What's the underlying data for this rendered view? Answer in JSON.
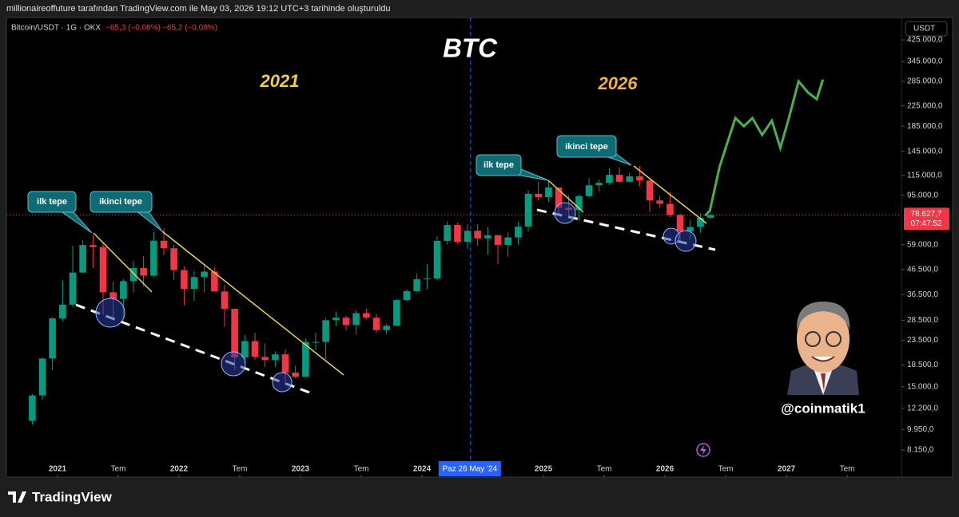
{
  "header": {
    "caption": "millionaireoffuture tarafından TradingView.com ile May 03, 2026 19:12 UTC+3 tarihinde oluşturuldu"
  },
  "chart_data": {
    "type": "candlestick",
    "symbol": "Bitcoin/USDT · 1G · OKX",
    "change_1": "−65,3 (−0,08%)",
    "change_2": "−65,2 (−0,08%)",
    "currency": "USDT",
    "title": "BTC",
    "label_left": "2021",
    "label_right": "2026",
    "callout_1": "ilk tepe",
    "callout_2": "ikinci tepe",
    "callout_3": "ilk tepe",
    "callout_4": "ikinci tepe",
    "author": "@coinmatik1",
    "up_color": "#089981",
    "down_color": "#f23645",
    "x": [
      2020.792,
      2020.875,
      2020.958,
      2021.042,
      2021.125,
      2021.208,
      2021.292,
      2021.375,
      2021.458,
      2021.542,
      2021.625,
      2021.708,
      2021.792,
      2021.875,
      2021.958,
      2022.042,
      2022.125,
      2022.208,
      2022.292,
      2022.375,
      2022.458,
      2022.542,
      2022.625,
      2022.708,
      2022.792,
      2022.875,
      2022.958,
      2023.042,
      2023.125,
      2023.208,
      2023.292,
      2023.375,
      2023.458,
      2023.542,
      2023.625,
      2023.708,
      2023.792,
      2023.875,
      2023.958,
      2024.042,
      2024.125,
      2024.208,
      2024.292,
      2024.375,
      2024.458,
      2024.542,
      2024.625,
      2024.708,
      2024.792,
      2024.875,
      2024.958,
      2025.042,
      2025.125,
      2025.208,
      2025.292,
      2025.375,
      2025.458,
      2025.542,
      2025.625,
      2025.708,
      2025.792,
      2025.875,
      2025.958,
      2026.042,
      2026.125,
      2026.208,
      2026.292,
      2026.375
    ],
    "open": [
      10800,
      13800,
      19700,
      29000,
      33100,
      45100,
      58800,
      57700,
      37300,
      35000,
      41500,
      47100,
      43800,
      61300,
      57000,
      46200,
      38500,
      43200,
      45500,
      37600,
      31800,
      19900,
      23300,
      20000,
      19400,
      20500,
      17200,
      16500,
      23100,
      23100,
      28500,
      29200,
      27200,
      30500,
      29200,
      25900,
      27000,
      34600,
      37700,
      42300,
      42600,
      61200,
      71300,
      60600,
      67500,
      62700,
      64600,
      58900,
      63300,
      70200,
      96400,
      93400,
      102400,
      84300,
      82500,
      94200,
      104600,
      107100,
      115700,
      108200,
      114000,
      109500,
      90400,
      87500,
      78600,
      67000,
      70000,
      76500
    ],
    "high": [
      14000,
      19900,
      29300,
      41900,
      58400,
      61800,
      64900,
      59600,
      41300,
      42300,
      50500,
      52900,
      67000,
      69000,
      59100,
      47900,
      45800,
      48200,
      47500,
      40000,
      31900,
      24700,
      25200,
      22800,
      21100,
      21500,
      18400,
      23900,
      25300,
      29200,
      31000,
      29800,
      31400,
      31800,
      30200,
      27500,
      35000,
      38400,
      44700,
      48900,
      64000,
      73800,
      72800,
      71900,
      72000,
      70000,
      65000,
      66500,
      73600,
      99600,
      108300,
      109600,
      102500,
      95000,
      95700,
      111900,
      110500,
      123200,
      124500,
      117900,
      126200,
      110600,
      94600,
      97900,
      79500,
      75000,
      80000,
      79500
    ],
    "low": [
      10400,
      13200,
      17600,
      28100,
      32300,
      45000,
      47000,
      30000,
      28800,
      29300,
      37300,
      39600,
      43300,
      53300,
      42000,
      32900,
      34300,
      37200,
      37600,
      26700,
      17600,
      18800,
      19500,
      18100,
      18200,
      15500,
      16300,
      16500,
      21400,
      19600,
      26900,
      25800,
      24800,
      28900,
      25200,
      24900,
      26900,
      34100,
      37600,
      38500,
      41900,
      59000,
      59600,
      56500,
      58400,
      53500,
      49000,
      52500,
      58900,
      66800,
      90500,
      89200,
      78200,
      76600,
      74400,
      93300,
      98200,
      105100,
      107300,
      107200,
      103500,
      80600,
      84000,
      77000,
      60000,
      62000,
      66000,
      76000
    ],
    "close": [
      13800,
      19700,
      29000,
      33100,
      45100,
      58800,
      57700,
      37300,
      35000,
      41500,
      47100,
      43800,
      61300,
      57000,
      46200,
      38500,
      43200,
      45500,
      37600,
      31800,
      19900,
      23300,
      20000,
      19400,
      20500,
      17200,
      16500,
      23100,
      23100,
      28500,
      29200,
      27200,
      30500,
      29200,
      25900,
      27000,
      34600,
      37700,
      42300,
      42600,
      61200,
      71300,
      60600,
      67500,
      62700,
      64600,
      58900,
      63300,
      70200,
      96400,
      93400,
      102400,
      84300,
      82500,
      94200,
      104600,
      107100,
      115700,
      108200,
      114000,
      109500,
      90400,
      87500,
      78600,
      67000,
      70000,
      76500,
      78627.7
    ],
    "projection": {
      "color": "#4caf50",
      "x": [
        2026.33,
        2026.37,
        2026.45,
        2026.5,
        2026.58,
        2026.65,
        2026.72,
        2026.8,
        2026.88,
        2026.95,
        2027.02,
        2027.1,
        2027.18,
        2027.25,
        2027.3
      ],
      "values": [
        78000,
        82000,
        125000,
        150000,
        200000,
        185000,
        200000,
        170000,
        195000,
        150000,
        200000,
        285000,
        255000,
        240000,
        290000
      ]
    },
    "xlim": [
      2020.579,
      2027.947
    ],
    "xticks": [
      2021,
      {
        "value": 2021.5,
        "label": "Tem"
      },
      2022,
      {
        "value": 2022.5,
        "label": "Tem"
      },
      2023,
      {
        "value": 2023.5,
        "label": "Tem"
      },
      2024,
      2025,
      {
        "value": 2025.5,
        "label": "Tem"
      },
      2026,
      {
        "value": 2026.5,
        "label": "Tem"
      },
      2027,
      {
        "value": 2027.5,
        "label": "Tem"
      }
    ],
    "ylim": [
      6280,
      527000
    ],
    "log_scale": true,
    "grid": false,
    "yticks": [
      {
        "value": 425000,
        "label": "425.000,0"
      },
      {
        "value": 345000,
        "label": "345.000,0"
      },
      {
        "value": 285000,
        "label": "285.000,0"
      },
      {
        "value": 225000,
        "label": "225.000,0"
      },
      {
        "value": 185000,
        "label": "185.000,0"
      },
      {
        "value": 145000,
        "label": "145.000,0"
      },
      {
        "value": 115000,
        "label": "115.000,0"
      },
      {
        "value": 95000,
        "label": "95.000,0"
      },
      {
        "value": 59000,
        "label": "59.000,0"
      },
      {
        "value": 46500,
        "label": "46.500,0"
      },
      {
        "value": 36500,
        "label": "36.500,0"
      },
      {
        "value": 28500,
        "label": "28.500,0"
      },
      {
        "value": 23500,
        "label": "23.500,0"
      },
      {
        "value": 18500,
        "label": "18.500,0"
      },
      {
        "value": 15000,
        "label": "15.000,0"
      },
      {
        "value": 12200,
        "label": "12.200,0"
      },
      {
        "value": 9950,
        "label": "9.950,0"
      },
      {
        "value": 8150,
        "label": "8.150,0"
      }
    ],
    "last_price": {
      "value": 78627.7,
      "label": "78.627,7"
    },
    "countdown": "07:47:52",
    "crosshair": {
      "value": 2024.4,
      "label": "Paz 26 May '24"
    }
  },
  "footer": {
    "brand": "TradingView"
  }
}
